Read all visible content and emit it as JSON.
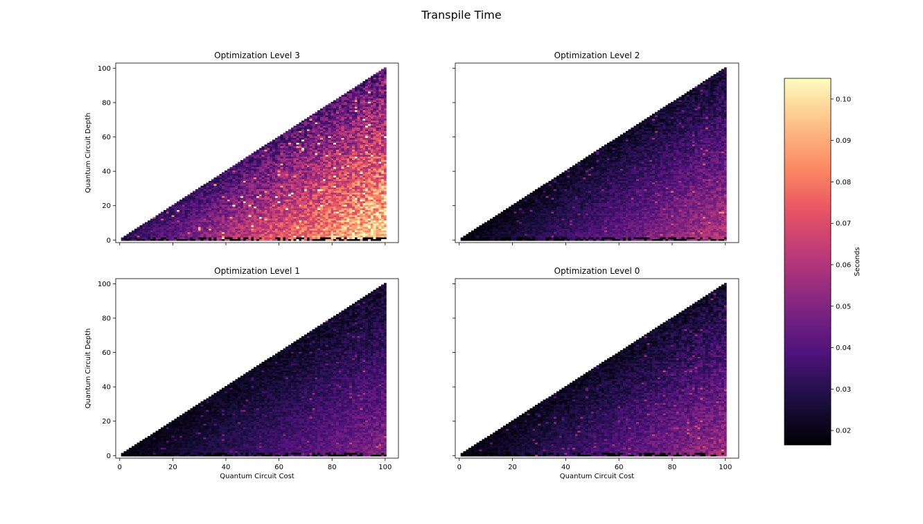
{
  "figure": {
    "title": "Transpile Time"
  },
  "colorbar": {
    "label": "Seconds",
    "colormap": "magma",
    "vmin": 0.0165,
    "vmax": 0.105,
    "ticks": [
      0.02,
      0.03,
      0.04,
      0.05,
      0.06,
      0.07,
      0.08,
      0.09,
      0.1
    ],
    "tick_labels": [
      "0.02",
      "0.03",
      "0.04",
      "0.05",
      "0.06",
      "0.07",
      "0.08",
      "0.09",
      "0.10"
    ]
  },
  "chart_data": [
    {
      "type": "heatmap",
      "title": "Optimization Level 3",
      "xlabel": "",
      "ylabel": "Quantum Circuit Depth",
      "x_tick_labels": [],
      "y_ticks": [
        0,
        20,
        40,
        60,
        80,
        100
      ],
      "xlim": [
        -1.5,
        105
      ],
      "ylim": [
        -1.5,
        103
      ],
      "x_range": [
        1,
        100
      ],
      "y_range": [
        0,
        100
      ],
      "mask": "depth <= cost",
      "level_low_edge": 0.03,
      "level_high_edge": 0.1,
      "noise": 0.025
    },
    {
      "type": "heatmap",
      "title": "Optimization Level 2",
      "xlabel": "",
      "ylabel": "",
      "x_tick_labels": [],
      "y_tick_labels": [],
      "xlim": [
        -1.5,
        105
      ],
      "ylim": [
        -1.5,
        103
      ],
      "x_range": [
        1,
        100
      ],
      "y_range": [
        0,
        100
      ],
      "mask": "depth <= cost",
      "level_low_edge": 0.018,
      "level_high_edge": 0.06,
      "noise": 0.012
    },
    {
      "type": "heatmap",
      "title": "Optimization Level 1",
      "xlabel": "Quantum Circuit Cost",
      "ylabel": "Quantum Circuit Depth",
      "x_ticks": [
        0,
        20,
        40,
        60,
        80,
        100
      ],
      "y_ticks": [
        0,
        20,
        40,
        60,
        80,
        100
      ],
      "xlim": [
        -1.5,
        105
      ],
      "ylim": [
        -1.5,
        103
      ],
      "x_range": [
        1,
        100
      ],
      "y_range": [
        0,
        100
      ],
      "mask": "depth <= cost",
      "level_low_edge": 0.018,
      "level_high_edge": 0.05,
      "noise": 0.01
    },
    {
      "type": "heatmap",
      "title": "Optimization Level 0",
      "xlabel": "Quantum Circuit Cost",
      "ylabel": "",
      "x_ticks": [
        0,
        20,
        40,
        60,
        80,
        100
      ],
      "y_tick_labels": [],
      "xlim": [
        -1.5,
        105
      ],
      "ylim": [
        -1.5,
        103
      ],
      "x_range": [
        1,
        100
      ],
      "y_range": [
        0,
        100
      ],
      "mask": "depth <= cost",
      "level_low_edge": 0.018,
      "level_high_edge": 0.055,
      "noise": 0.012
    }
  ]
}
